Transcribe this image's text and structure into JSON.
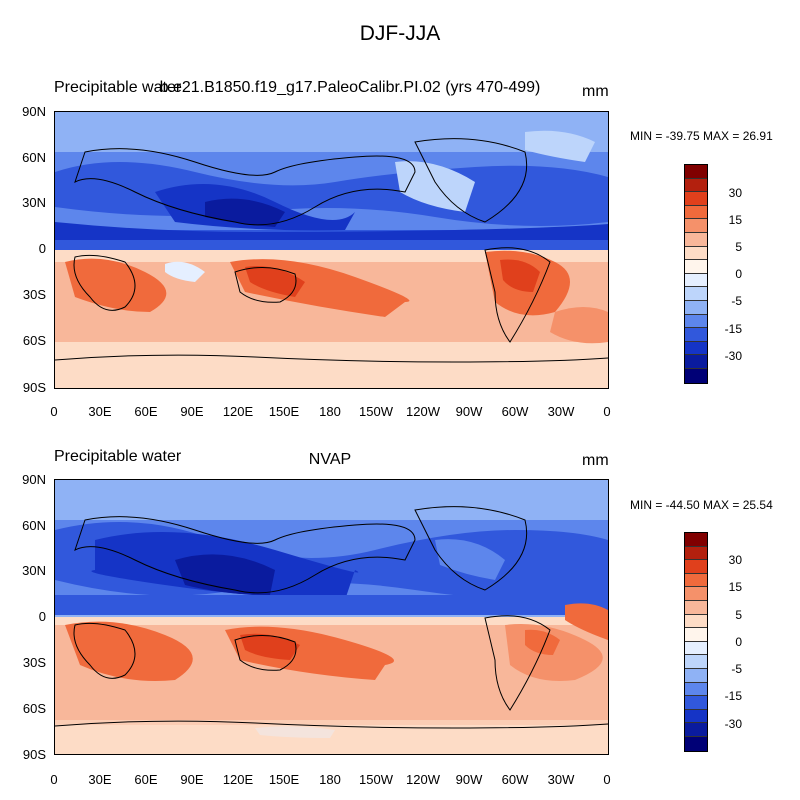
{
  "figure": {
    "title": "DJF-JJA",
    "panels": [
      {
        "left_title": "Precipitable water",
        "center_title": "b.e21.B1850.f19_g17.PaleoCalibr.PI.02 (yrs 470-499)",
        "units": "mm",
        "min_max": "MIN = -39.75 MAX =  26.91"
      },
      {
        "left_title": "Precipitable water",
        "center_title": "NVAP",
        "units": "mm",
        "min_max": "MIN = -44.50 MAX =  25.54"
      }
    ],
    "lat_labels": [
      "90N",
      "60N",
      "30N",
      "0",
      "30S",
      "60S",
      "90S"
    ],
    "lon_labels": [
      "0",
      "30E",
      "60E",
      "90E",
      "120E",
      "150E",
      "180",
      "150W",
      "120W",
      "90W",
      "60W",
      "30W",
      "0"
    ],
    "colorbar": {
      "colors": [
        "#800000",
        "#b3200e",
        "#e0401c",
        "#f06a3c",
        "#f5916a",
        "#f8b79a",
        "#fddcc6",
        "#fff5ec",
        "#e5efff",
        "#bdd5fb",
        "#8fb2f5",
        "#5d86ec",
        "#3158dc",
        "#1534c6",
        "#0a1b9e",
        "#000076"
      ],
      "tick_labels": [
        "30",
        "15",
        "5",
        "0",
        "-5",
        "-15",
        "-30"
      ]
    }
  }
}
